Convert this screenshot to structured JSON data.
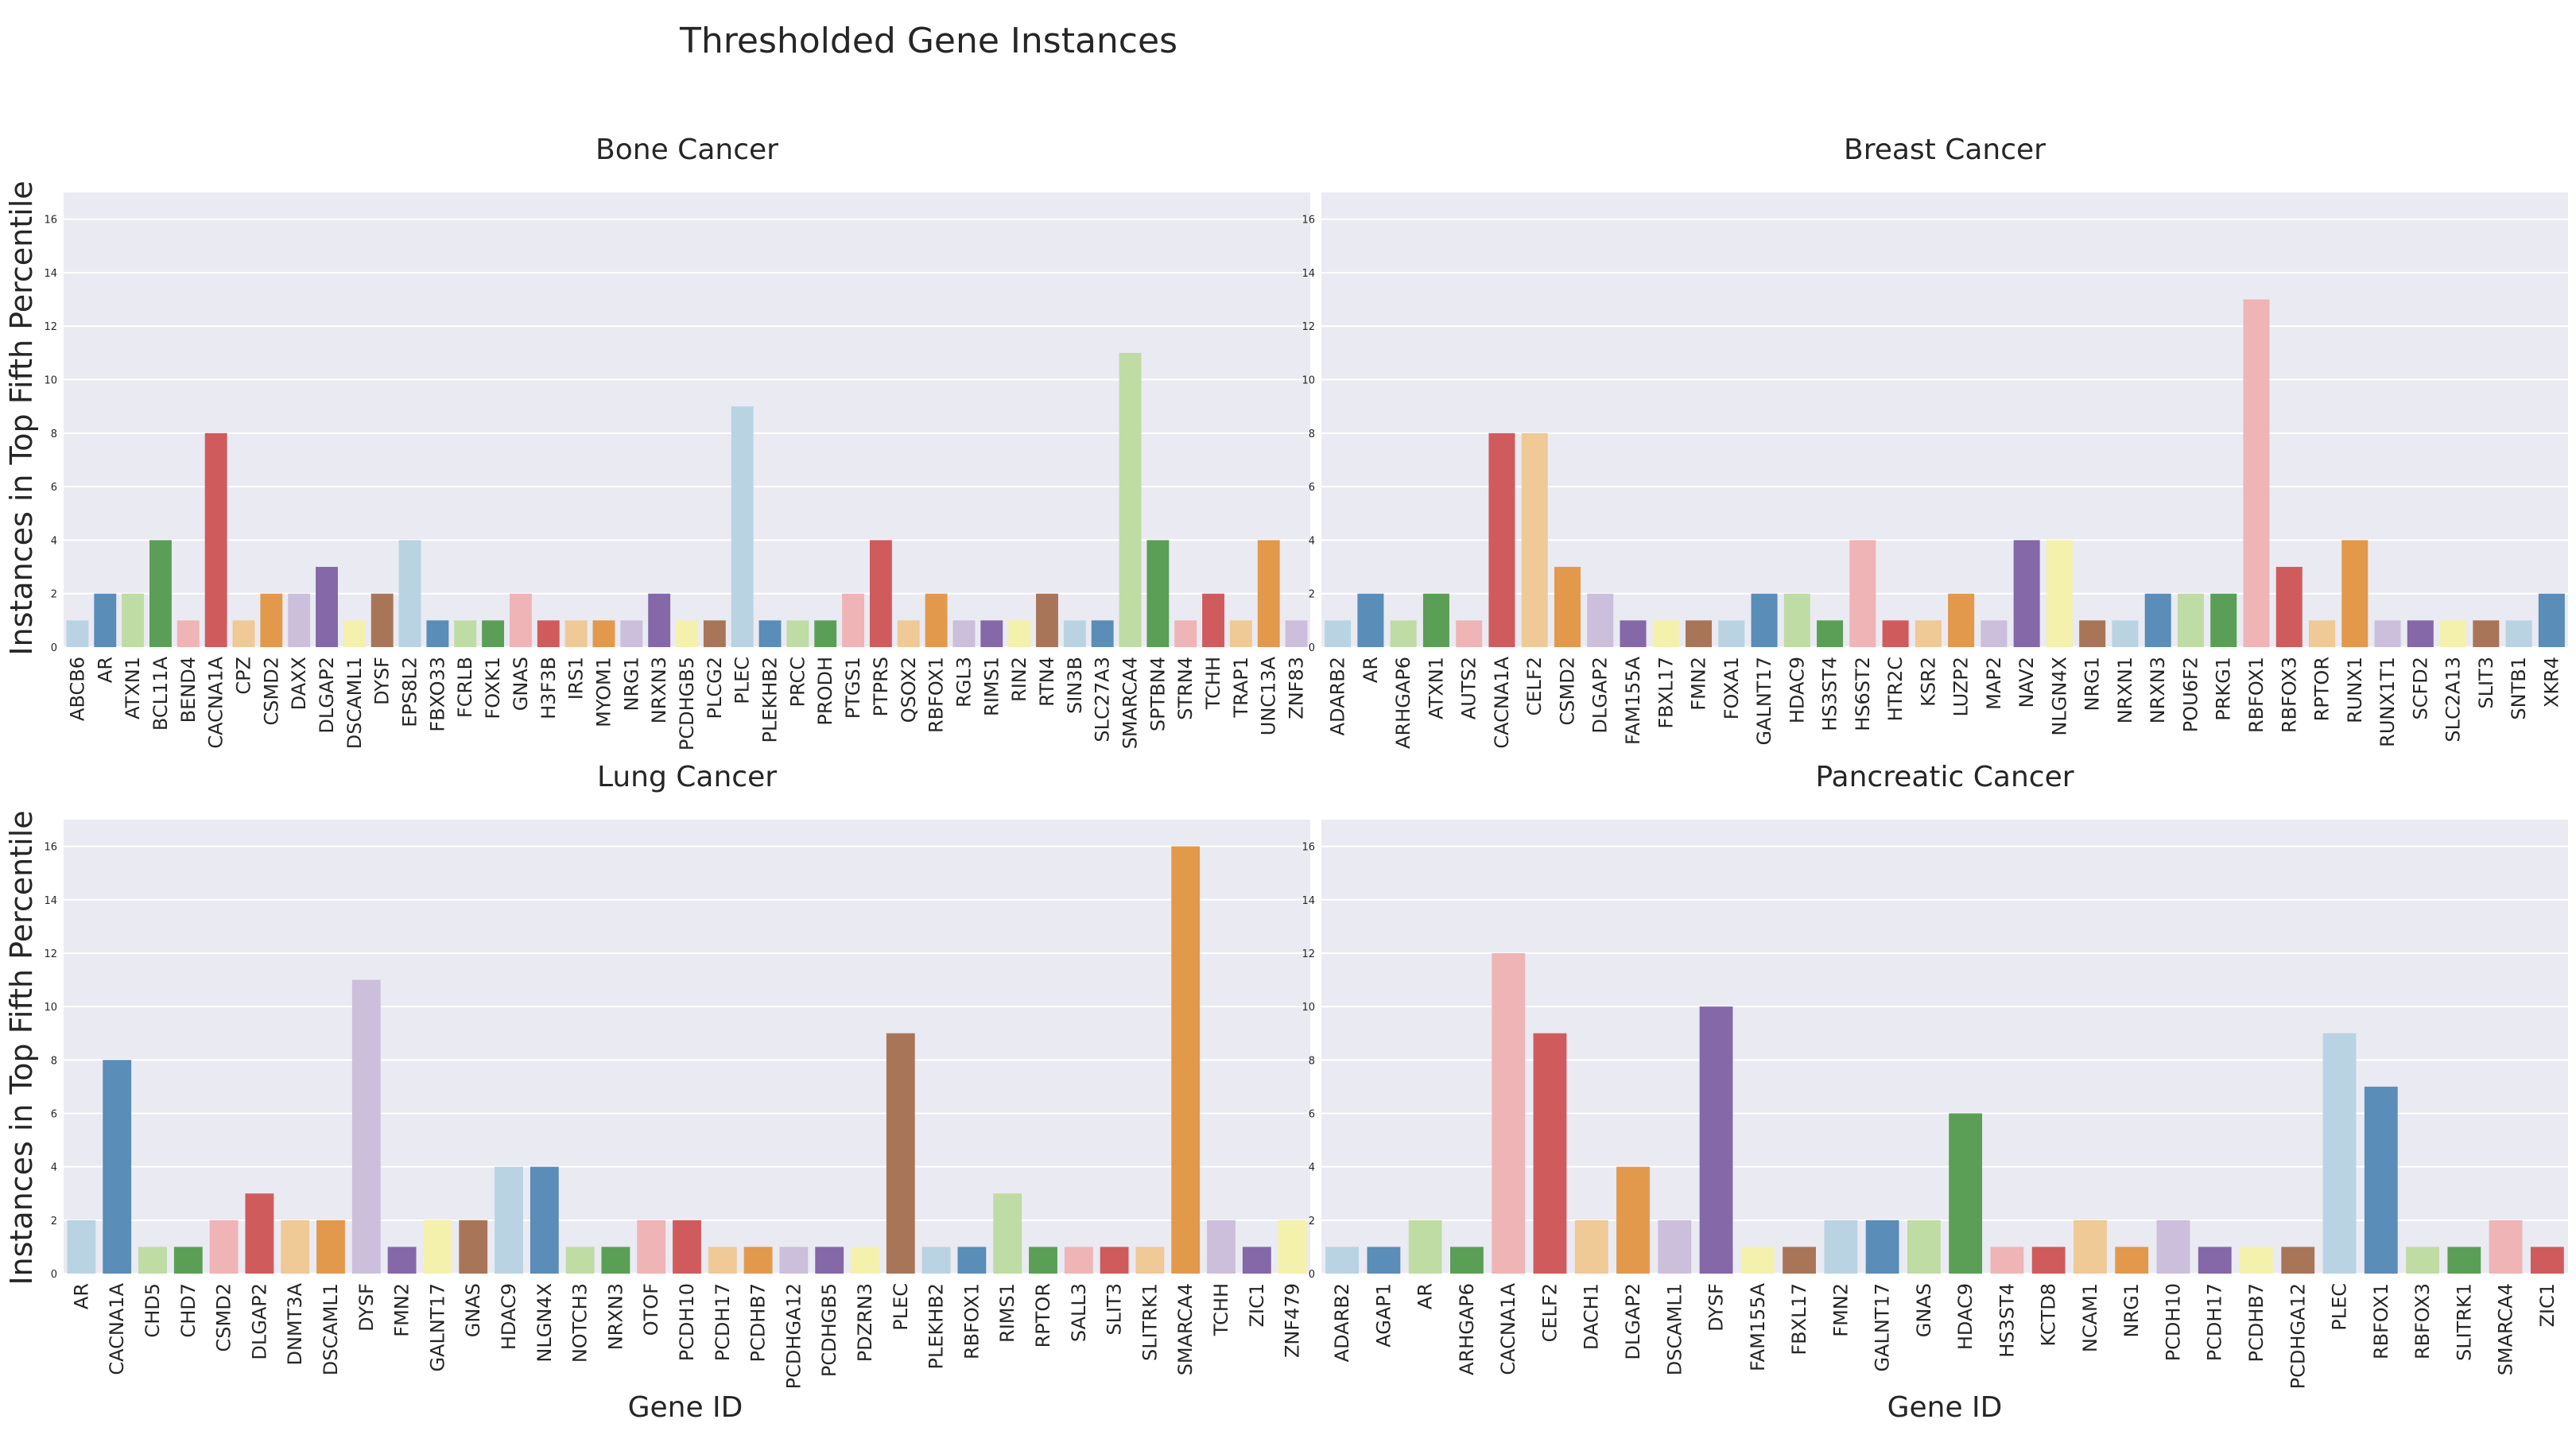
{
  "figure": {
    "title": "Thresholded Gene Instances",
    "ylabel": "Instances in Top Fifth Percentile",
    "xlabel": "Gene ID"
  },
  "palette": [
    "#b9d3e3",
    "#5a8db7",
    "#bfdca4",
    "#5a9f55",
    "#efb4b6",
    "#d05b5d",
    "#efc996",
    "#e2994b",
    "#cbbfdb",
    "#8468a7",
    "#f4f1ac",
    "#a97558"
  ],
  "chart_data": [
    {
      "type": "bar",
      "title": "Bone Cancer",
      "ylim": [
        0,
        17
      ],
      "yticks": [
        0,
        2,
        4,
        6,
        8,
        10,
        12,
        14,
        16
      ],
      "categories": [
        "ABCB6",
        "AR",
        "ATXN1",
        "BCL11A",
        "BEND4",
        "CACNA1A",
        "CPZ",
        "CSMD2",
        "DAXX",
        "DLGAP2",
        "DSCAML1",
        "DYSF",
        "EPS8L2",
        "FBXO33",
        "FCRLB",
        "FOXK1",
        "GNAS",
        "H3F3B",
        "IRS1",
        "MYOM1",
        "NRG1",
        "NRXN3",
        "PCDHGB5",
        "PLCG2",
        "PLEC",
        "PLEKHB2",
        "PRCC",
        "PRODH",
        "PTGS1",
        "PTPRS",
        "QSOX2",
        "RBFOX1",
        "RGL3",
        "RIMS1",
        "RIN2",
        "RTN4",
        "SIN3B",
        "SLC27A3",
        "SMARCA4",
        "SPTBN4",
        "STRN4",
        "TCHH",
        "TRAP1",
        "UNC13A",
        "ZNF83"
      ],
      "values": [
        1,
        2,
        2,
        4,
        1,
        8,
        1,
        2,
        2,
        3,
        1,
        2,
        4,
        1,
        1,
        1,
        2,
        1,
        1,
        1,
        1,
        2,
        1,
        1,
        9,
        1,
        1,
        1,
        2,
        4,
        1,
        2,
        1,
        1,
        1,
        2,
        1,
        1,
        11,
        4,
        1,
        2,
        1,
        4,
        1
      ]
    },
    {
      "type": "bar",
      "title": "Breast Cancer",
      "ylim": [
        0,
        17
      ],
      "yticks": [
        0,
        2,
        4,
        6,
        8,
        10,
        12,
        14,
        16
      ],
      "categories": [
        "ADARB2",
        "AR",
        "ARHGAP6",
        "ATXN1",
        "AUTS2",
        "CACNA1A",
        "CELF2",
        "CSMD2",
        "DLGAP2",
        "FAM155A",
        "FBXL17",
        "FMN2",
        "FOXA1",
        "GALNT17",
        "HDAC9",
        "HS3ST4",
        "HS6ST2",
        "HTR2C",
        "KSR2",
        "LUZP2",
        "MAP2",
        "NAV2",
        "NLGN4X",
        "NRG1",
        "NRXN1",
        "NRXN3",
        "POU6F2",
        "PRKG1",
        "RBFOX1",
        "RBFOX3",
        "RPTOR",
        "RUNX1",
        "RUNX1T1",
        "SCFD2",
        "SLC2A13",
        "SLIT3",
        "SNTB1",
        "XKR4"
      ],
      "values": [
        1,
        2,
        1,
        2,
        1,
        8,
        8,
        3,
        2,
        1,
        1,
        1,
        1,
        2,
        2,
        1,
        4,
        1,
        1,
        2,
        1,
        4,
        4,
        1,
        1,
        2,
        2,
        2,
        13,
        3,
        1,
        4,
        1,
        1,
        1,
        1,
        1,
        2
      ]
    },
    {
      "type": "bar",
      "title": "Lung Cancer",
      "xlabel": "Gene ID",
      "ylim": [
        0,
        17
      ],
      "yticks": [
        0,
        2,
        4,
        6,
        8,
        10,
        12,
        14,
        16
      ],
      "categories": [
        "AR",
        "CACNA1A",
        "CHD5",
        "CHD7",
        "CSMD2",
        "DLGAP2",
        "DNMT3A",
        "DSCAML1",
        "DYSF",
        "FMN2",
        "GALNT17",
        "GNAS",
        "HDAC9",
        "NLGN4X",
        "NOTCH3",
        "NRXN3",
        "OTOF",
        "PCDH10",
        "PCDH17",
        "PCDHB7",
        "PCDHGA12",
        "PCDHGB5",
        "PDZRN3",
        "PLEC",
        "PLEKHB2",
        "RBFOX1",
        "RIMS1",
        "RPTOR",
        "SALL3",
        "SLIT3",
        "SLITRK1",
        "SMARCA4",
        "TCHH",
        "ZIC1",
        "ZNF479"
      ],
      "values": [
        2,
        8,
        1,
        1,
        2,
        3,
        2,
        2,
        11,
        1,
        2,
        2,
        4,
        4,
        1,
        1,
        2,
        2,
        1,
        1,
        1,
        1,
        1,
        9,
        1,
        1,
        3,
        1,
        1,
        1,
        1,
        16,
        2,
        1,
        2
      ]
    },
    {
      "type": "bar",
      "title": "Pancreatic Cancer",
      "xlabel": "Gene ID",
      "ylim": [
        0,
        17
      ],
      "yticks": [
        0,
        2,
        4,
        6,
        8,
        10,
        12,
        14,
        16
      ],
      "categories": [
        "ADARB2",
        "AGAP1",
        "AR",
        "ARHGAP6",
        "CACNA1A",
        "CELF2",
        "DACH1",
        "DLGAP2",
        "DSCAML1",
        "DYSF",
        "FAM155A",
        "FBXL17",
        "FMN2",
        "GALNT17",
        "GNAS",
        "HDAC9",
        "HS3ST4",
        "KCTD8",
        "NCAM1",
        "NRG1",
        "PCDH10",
        "PCDH17",
        "PCDHB7",
        "PCDHGA12",
        "PLEC",
        "RBFOX1",
        "RBFOX3",
        "SLITRK1",
        "SMARCA4",
        "ZIC1"
      ],
      "values": [
        1,
        1,
        2,
        1,
        12,
        9,
        2,
        4,
        2,
        10,
        1,
        1,
        2,
        2,
        2,
        6,
        1,
        1,
        2,
        1,
        2,
        1,
        1,
        1,
        9,
        7,
        1,
        1,
        2,
        1
      ]
    }
  ]
}
